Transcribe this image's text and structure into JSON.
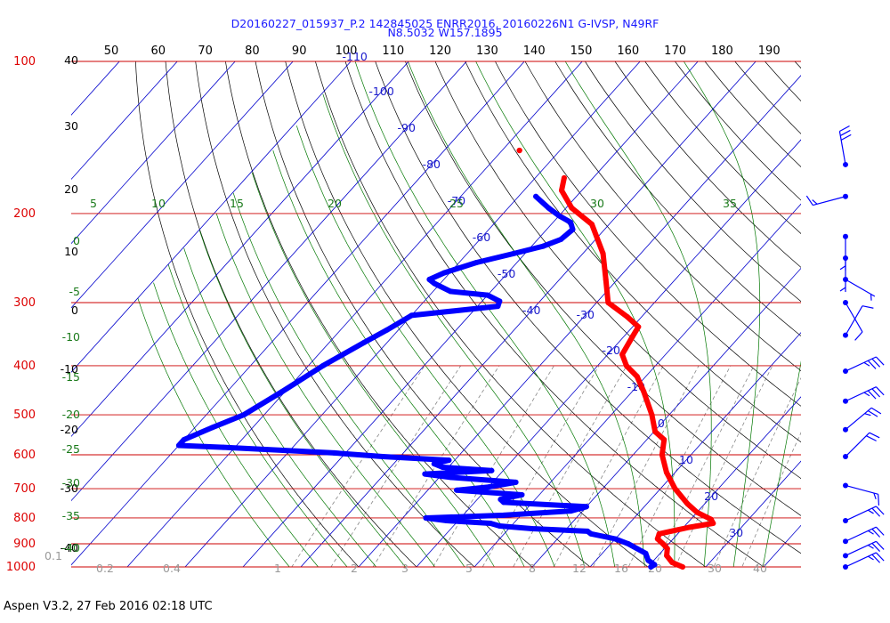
{
  "header": {
    "line1": "D20160227_015937_P.2 142845025 ENRR2016, 20160226N1 G-IVSP, N49RF",
    "line2": "N8.5032 W157.1895"
  },
  "footer": "Aspen V3.2, 27 Feb 2016  02:18 UTC",
  "colors": {
    "temperature": "#ff0000",
    "dewpoint": "#0000ff",
    "isobar": "#cc0000",
    "isotherm": "#0000cc",
    "dry_adiabat": "#000000",
    "moist_adiabat": "#007700",
    "mixing_ratio": "#888888",
    "barb": "#0000ff"
  },
  "chart_data": {
    "type": "skew-t",
    "pressure_labels": [
      "100",
      "200",
      "300",
      "400",
      "500",
      "600",
      "700",
      "800",
      "900",
      "1000"
    ],
    "pressure_label_values": [
      100,
      200,
      300,
      400,
      500,
      600,
      700,
      800,
      900,
      1000
    ],
    "top_axis_labels": [
      "50",
      "60",
      "70",
      "80",
      "90",
      "100",
      "110",
      "120",
      "130",
      "140",
      "150",
      "160",
      "170",
      "180",
      "190"
    ],
    "isotherm_labels": [
      {
        "t": -110,
        "text": "-110"
      },
      {
        "t": -100,
        "text": "-100"
      },
      {
        "t": -90,
        "text": "-90"
      },
      {
        "t": -80,
        "text": "-80"
      },
      {
        "t": -70,
        "text": "-70"
      },
      {
        "t": -60,
        "text": "-60"
      },
      {
        "t": -50,
        "text": "-50"
      },
      {
        "t": -40,
        "text": "-40"
      },
      {
        "t": -30,
        "text": "-30"
      },
      {
        "t": -20,
        "text": "-20"
      },
      {
        "t": -10,
        "text": "-10"
      },
      {
        "t": 0,
        "text": "0"
      },
      {
        "t": 10,
        "text": "10"
      },
      {
        "t": 20,
        "text": "20"
      },
      {
        "t": 30,
        "text": "30"
      }
    ],
    "left_black_labels": [
      "40",
      "30",
      "20",
      "10",
      "0",
      "-10",
      "-20",
      "-30",
      "-40"
    ],
    "left_green_labels": [
      "0",
      "-5",
      "-10",
      "-15",
      "-20",
      "-25",
      "-30",
      "-35",
      "-40"
    ],
    "moist_top_labels": [
      "5",
      "10",
      "15",
      "20",
      "25",
      "30",
      "35"
    ],
    "mixing_ratio_labels": [
      "0.1",
      "0.2",
      "0.4",
      "1",
      "2",
      "3",
      "5",
      "8",
      "12",
      "16",
      "20",
      "30",
      "40"
    ],
    "temperature": [
      {
        "p": 1000,
        "t": 26.0
      },
      {
        "p": 980,
        "t": 23.5
      },
      {
        "p": 950,
        "t": 21.5
      },
      {
        "p": 920,
        "t": 20.5
      },
      {
        "p": 900,
        "t": 19.0
      },
      {
        "p": 880,
        "t": 17.3
      },
      {
        "p": 860,
        "t": 16.8
      },
      {
        "p": 835,
        "t": 21.0
      },
      {
        "p": 820,
        "t": 24.5
      },
      {
        "p": 805,
        "t": 23.5
      },
      {
        "p": 780,
        "t": 20.0
      },
      {
        "p": 750,
        "t": 17.0
      },
      {
        "p": 700,
        "t": 12.5
      },
      {
        "p": 650,
        "t": 8.5
      },
      {
        "p": 600,
        "t": 5.0
      },
      {
        "p": 560,
        "t": 3.0
      },
      {
        "p": 540,
        "t": 0.2
      },
      {
        "p": 500,
        "t": -3.0
      },
      {
        "p": 450,
        "t": -8.0
      },
      {
        "p": 420,
        "t": -11.5
      },
      {
        "p": 400,
        "t": -15.0
      },
      {
        "p": 380,
        "t": -17.5
      },
      {
        "p": 350,
        "t": -18.5
      },
      {
        "p": 335,
        "t": -19.0
      },
      {
        "p": 320,
        "t": -22.5
      },
      {
        "p": 300,
        "t": -28.0
      },
      {
        "p": 270,
        "t": -32.0
      },
      {
        "p": 240,
        "t": -36.5
      },
      {
        "p": 210,
        "t": -43.0
      },
      {
        "p": 195,
        "t": -49.0
      },
      {
        "p": 180,
        "t": -53.5
      },
      {
        "p": 170,
        "t": -55.0
      }
    ],
    "temperature_isolated": [
      {
        "p": 150,
        "t": -67.0
      }
    ],
    "dewpoint": [
      {
        "p": 1000,
        "t": 20.5
      },
      {
        "p": 990,
        "t": 20.8
      },
      {
        "p": 970,
        "t": 19.0
      },
      {
        "p": 940,
        "t": 17.5
      },
      {
        "p": 900,
        "t": 13.0
      },
      {
        "p": 880,
        "t": 10.0
      },
      {
        "p": 860,
        "t": 5.0
      },
      {
        "p": 850,
        "t": 4.0
      },
      {
        "p": 840,
        "t": -6.0
      },
      {
        "p": 830,
        "t": -12.0
      },
      {
        "p": 820,
        "t": -14.0
      },
      {
        "p": 810,
        "t": -22.0
      },
      {
        "p": 800,
        "t": -26.0
      },
      {
        "p": 790,
        "t": -13.0
      },
      {
        "p": 775,
        "t": -2.0
      },
      {
        "p": 760,
        "t": 0.0
      },
      {
        "p": 745,
        "t": -15.0
      },
      {
        "p": 735,
        "t": -16.0
      },
      {
        "p": 720,
        "t": -13.0
      },
      {
        "p": 705,
        "t": -25.0
      },
      {
        "p": 695,
        "t": -20.0
      },
      {
        "p": 680,
        "t": -16.0
      },
      {
        "p": 665,
        "t": -28.0
      },
      {
        "p": 655,
        "t": -33.0
      },
      {
        "p": 645,
        "t": -22.0
      },
      {
        "p": 635,
        "t": -31.0
      },
      {
        "p": 625,
        "t": -33.0
      },
      {
        "p": 615,
        "t": -31.0
      },
      {
        "p": 605,
        "t": -43.0
      },
      {
        "p": 595,
        "t": -52.0
      },
      {
        "p": 580,
        "t": -72.0
      },
      {
        "p": 575,
        "t": -80.0
      },
      {
        "p": 560,
        "t": -80.0
      },
      {
        "p": 530,
        "t": -77.0
      },
      {
        "p": 500,
        "t": -73.5
      },
      {
        "p": 450,
        "t": -70.5
      },
      {
        "p": 400,
        "t": -67.5
      },
      {
        "p": 360,
        "t": -64.0
      },
      {
        "p": 340,
        "t": -62.0
      },
      {
        "p": 318,
        "t": -60.0
      },
      {
        "p": 305,
        "t": -46.5
      },
      {
        "p": 298,
        "t": -47.0
      },
      {
        "p": 290,
        "t": -50.0
      },
      {
        "p": 285,
        "t": -57.0
      },
      {
        "p": 275,
        "t": -61.0
      },
      {
        "p": 270,
        "t": -62.5
      },
      {
        "p": 262,
        "t": -61.0
      },
      {
        "p": 250,
        "t": -57.0
      },
      {
        "p": 240,
        "t": -52.0
      },
      {
        "p": 232,
        "t": -48.0
      },
      {
        "p": 225,
        "t": -46.0
      },
      {
        "p": 215,
        "t": -45.5
      },
      {
        "p": 208,
        "t": -47.0
      },
      {
        "p": 202,
        "t": -50.0
      },
      {
        "p": 195,
        "t": -53.0
      },
      {
        "p": 185,
        "t": -57.0
      }
    ],
    "wind_barbs": [
      {
        "p": 160,
        "dir": 350,
        "speed_kt": 30
      },
      {
        "p": 185,
        "dir": 255,
        "speed_kt": 15
      },
      {
        "p": 222,
        "dir": 180,
        "speed_kt": 5
      },
      {
        "p": 245,
        "dir": 180,
        "speed_kt": 5
      },
      {
        "p": 270,
        "dir": 120,
        "speed_kt": 5
      },
      {
        "p": 300,
        "dir": 150,
        "speed_kt": 10
      },
      {
        "p": 348,
        "dir": 30,
        "speed_kt": 10
      },
      {
        "p": 410,
        "dir": 65,
        "speed_kt": 35
      },
      {
        "p": 470,
        "dir": 65,
        "speed_kt": 35
      },
      {
        "p": 535,
        "dir": 50,
        "speed_kt": 25
      },
      {
        "p": 605,
        "dir": 45,
        "speed_kt": 20
      },
      {
        "p": 690,
        "dir": 105,
        "speed_kt": 15
      },
      {
        "p": 810,
        "dir": 65,
        "speed_kt": 25
      },
      {
        "p": 890,
        "dir": 65,
        "speed_kt": 25
      },
      {
        "p": 950,
        "dir": 65,
        "speed_kt": 25
      },
      {
        "p": 1000,
        "dir": 65,
        "speed_kt": 25
      }
    ]
  }
}
